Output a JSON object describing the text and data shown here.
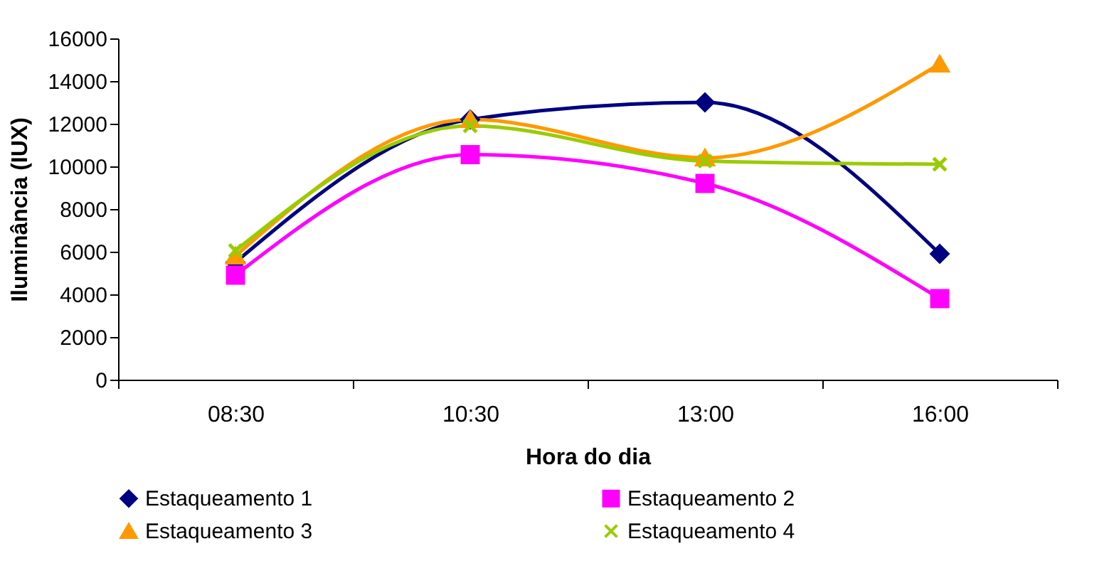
{
  "chart_data": {
    "type": "line",
    "xlabel": "Hora do dia",
    "ylabel": "Iluminância  (IUX)",
    "categories": [
      "08:30",
      "10:30",
      "13:00",
      "16:00"
    ],
    "ylim": [
      0,
      16000
    ],
    "yticks": [
      0,
      2000,
      4000,
      6000,
      8000,
      10000,
      12000,
      14000,
      16000
    ],
    "grid": false,
    "legend": "bottom",
    "series": [
      {
        "name": "Estaqueamento 1",
        "color": "#000080",
        "marker": "diamond",
        "values": [
          5500,
          12200,
          13000,
          5900
        ]
      },
      {
        "name": "Estaqueamento 2",
        "color": "#ff00ff",
        "marker": "square",
        "values": [
          4900,
          10550,
          9200,
          3800
        ]
      },
      {
        "name": "Estaqueamento 3",
        "color": "#ff9900",
        "marker": "triangle",
        "values": [
          5800,
          12200,
          10400,
          14800
        ]
      },
      {
        "name": "Estaqueamento 4",
        "color": "#99cc00",
        "marker": "cross",
        "values": [
          6050,
          11900,
          10250,
          10100
        ]
      }
    ]
  }
}
